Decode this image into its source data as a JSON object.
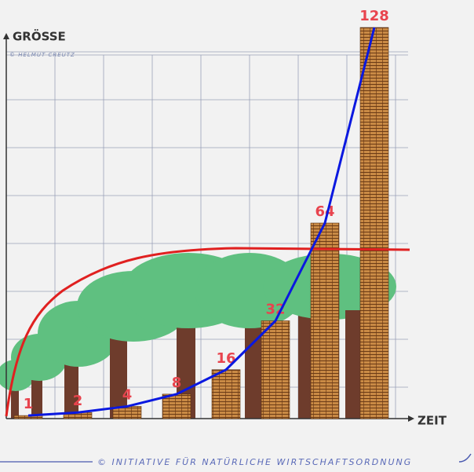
{
  "chart_data": {
    "type": "bar",
    "y_label": "GRÖSSE",
    "x_label": "ZEIT",
    "annotations": [
      "© HELMUT CREUTZ",
      "© INITIATIVE FÜR NATÜRLICHE WIRTSCHAFTSORDNUNG"
    ],
    "categories": [
      null,
      null,
      null,
      null,
      null,
      null,
      null,
      null
    ],
    "values": [
      1,
      2,
      4,
      8,
      16,
      32,
      64,
      128
    ],
    "color": "#b8753a",
    "line_color": "#0a18e0",
    "label_color": "#e8444e",
    "ylim": [
      0,
      128
    ],
    "grid": true
  }
}
